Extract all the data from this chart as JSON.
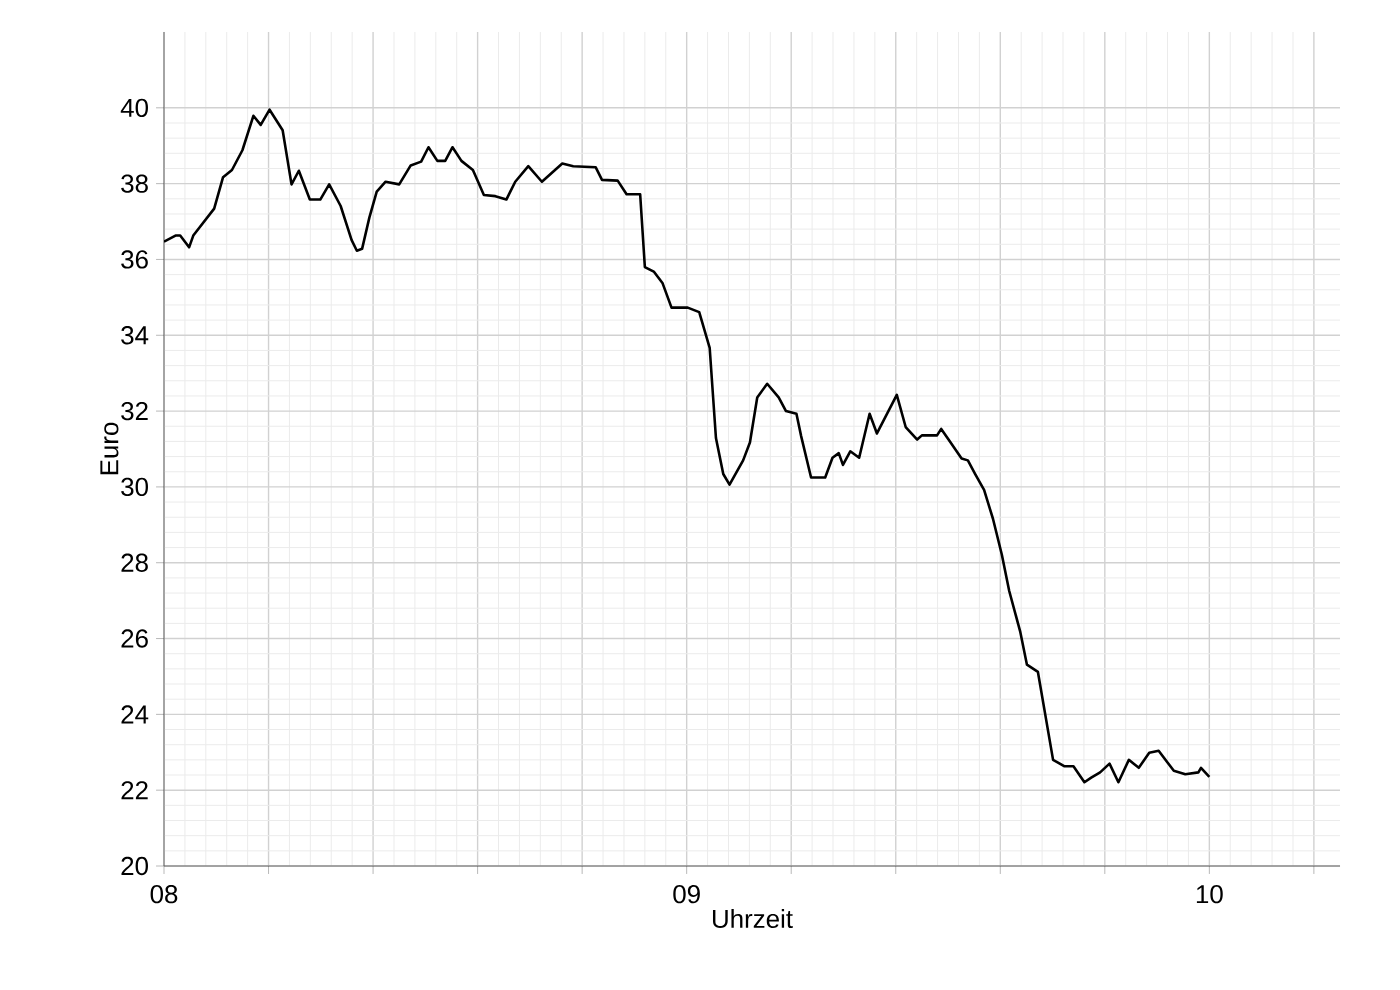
{
  "chart_data": {
    "type": "line",
    "xlabel": "Uhrzeit",
    "ylabel": "Euro",
    "color": "#000000",
    "grid": true,
    "marker": "none",
    "line_style": "solid",
    "xlim": [
      8,
      10.25
    ],
    "ylim": [
      20,
      42
    ],
    "xticks": [
      {
        "value": 8,
        "label": "08"
      },
      {
        "value": 8.2,
        "label": null
      },
      {
        "value": 8.4,
        "label": null
      },
      {
        "value": 8.6,
        "label": null
      },
      {
        "value": 8.8,
        "label": null
      },
      {
        "value": 9,
        "label": "09"
      },
      {
        "value": 9.2,
        "label": null
      },
      {
        "value": 9.4,
        "label": null
      },
      {
        "value": 9.6,
        "label": null
      },
      {
        "value": 9.8,
        "label": null
      },
      {
        "value": 10,
        "label": "10"
      },
      {
        "value": 10.2,
        "label": null
      }
    ],
    "yticks": [
      20,
      22,
      24,
      26,
      28,
      30,
      32,
      34,
      36,
      38,
      40
    ],
    "x": [
      8.0,
      8.022,
      8.031,
      8.048,
      8.056,
      8.096,
      8.113,
      8.13,
      8.15,
      8.171,
      8.185,
      8.202,
      8.227,
      8.244,
      8.258,
      8.279,
      8.299,
      8.316,
      8.338,
      8.359,
      8.369,
      8.379,
      8.393,
      8.407,
      8.424,
      8.45,
      8.472,
      8.492,
      8.506,
      8.523,
      8.538,
      8.552,
      8.569,
      8.591,
      8.612,
      8.634,
      8.655,
      8.672,
      8.697,
      8.723,
      8.762,
      8.783,
      8.826,
      8.838,
      8.868,
      8.885,
      8.911,
      8.92,
      8.937,
      8.954,
      8.971,
      8.988,
      9.002,
      9.024,
      9.044,
      9.056,
      9.07,
      9.082,
      9.108,
      9.121,
      9.135,
      9.154,
      9.176,
      9.19,
      9.21,
      9.219,
      9.238,
      9.265,
      9.279,
      9.291,
      9.299,
      9.313,
      9.33,
      9.35,
      9.364,
      9.402,
      9.419,
      9.441,
      9.45,
      9.479,
      9.487,
      9.501,
      9.526,
      9.538,
      9.552,
      9.569,
      9.586,
      9.603,
      9.617,
      9.638,
      9.651,
      9.672,
      9.701,
      9.723,
      9.74,
      9.761,
      9.774,
      9.791,
      9.809,
      9.826,
      9.846,
      9.865,
      9.885,
      9.903,
      9.932,
      9.954,
      9.979,
      9.984,
      10.0
    ],
    "values": [
      36.47,
      36.63,
      36.63,
      36.32,
      36.63,
      37.34,
      38.17,
      38.36,
      38.88,
      39.79,
      39.55,
      39.95,
      39.41,
      37.98,
      38.34,
      37.58,
      37.58,
      37.98,
      37.41,
      36.51,
      36.23,
      36.28,
      37.11,
      37.79,
      38.05,
      37.98,
      38.48,
      38.58,
      38.96,
      38.6,
      38.6,
      38.96,
      38.6,
      38.36,
      37.7,
      37.67,
      37.58,
      38.05,
      38.46,
      38.05,
      38.53,
      38.46,
      38.43,
      38.1,
      38.08,
      37.72,
      37.72,
      35.8,
      35.68,
      35.37,
      34.73,
      34.73,
      34.73,
      34.61,
      33.67,
      31.29,
      30.34,
      30.06,
      30.7,
      31.17,
      32.36,
      32.72,
      32.36,
      32.0,
      31.93,
      31.34,
      30.25,
      30.25,
      30.77,
      30.89,
      30.58,
      30.94,
      30.77,
      31.93,
      31.41,
      32.43,
      31.58,
      31.25,
      31.36,
      31.36,
      31.53,
      31.25,
      30.75,
      30.7,
      30.34,
      29.92,
      29.16,
      28.21,
      27.26,
      26.19,
      25.31,
      25.12,
      22.8,
      22.63,
      22.63,
      22.21,
      22.33,
      22.47,
      22.7,
      22.21,
      22.8,
      22.59,
      22.99,
      23.04,
      22.51,
      22.42,
      22.47,
      22.59,
      22.35
    ]
  }
}
